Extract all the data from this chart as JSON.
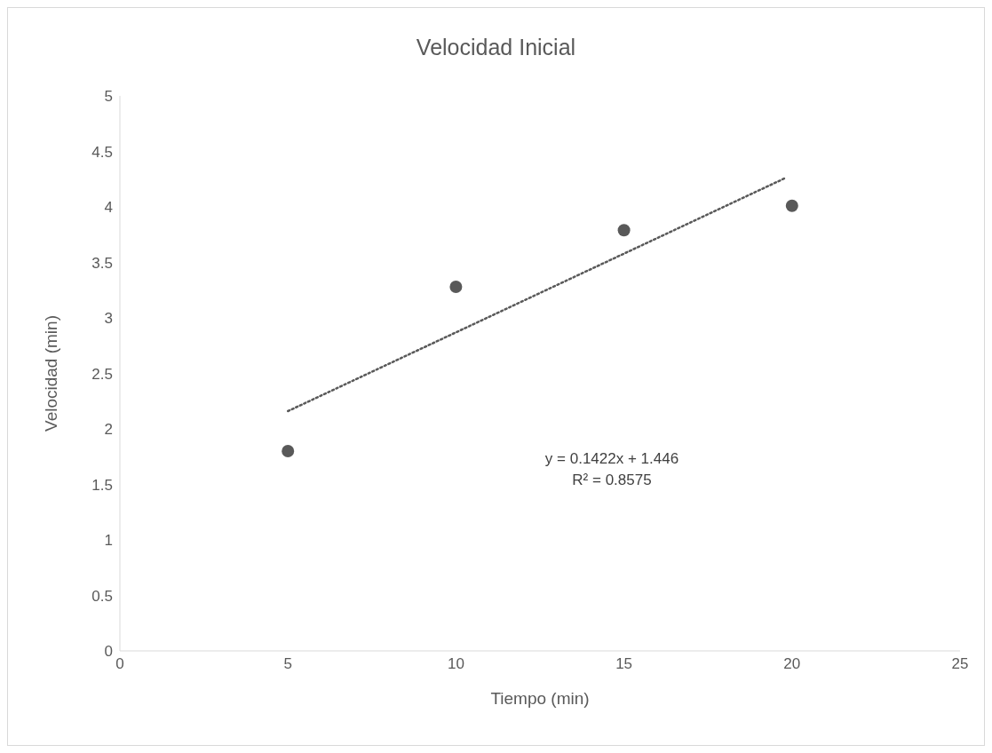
{
  "chart_data": {
    "type": "scatter",
    "title": "Velocidad Inicial",
    "xlabel": "Tiempo (min)",
    "ylabel": "Velocidad (min)",
    "x": [
      5,
      10,
      15,
      20
    ],
    "series": [
      {
        "color": "#595959",
        "values": [
          1.8,
          3.28,
          3.79,
          4.01
        ],
        "marker": "circle"
      },
      {
        "type": "line",
        "color": "#595959",
        "x": [
          5,
          19.8
        ],
        "values": [
          2.16,
          4.26
        ],
        "line_style": "dotted",
        "marker": "none"
      }
    ],
    "xlim": [
      0,
      25
    ],
    "xticks": [
      0,
      5,
      10,
      15,
      20,
      25
    ],
    "ylim": [
      0,
      5
    ],
    "yticks": [
      0,
      0.5,
      1,
      1.5,
      2,
      2.5,
      3,
      3.5,
      4,
      4.5,
      5
    ],
    "grid": false,
    "legend": false,
    "annotations": [
      "y = 0.1422x + 1.446",
      "R² = 0.8575"
    ]
  }
}
